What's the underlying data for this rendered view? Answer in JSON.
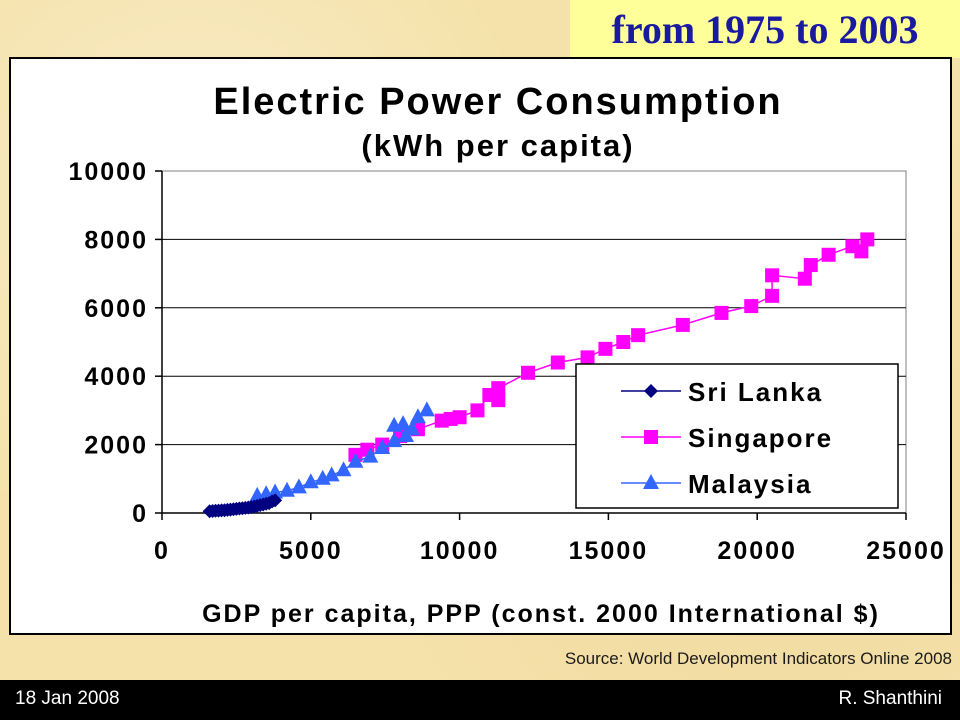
{
  "headline": "from 1975 to 2003",
  "source": "Source: World Development Indicators Online 2008",
  "footer": {
    "date": "18 Jan 2008",
    "author": "R. Shanthini"
  },
  "colors": {
    "sri_lanka": "#000080",
    "singapore": "#ff00ff",
    "malaysia": "#3366ff"
  },
  "chart_data": {
    "type": "scatter",
    "title": "Electric Power Consumption",
    "subtitle": "(kWh per capita)",
    "xlabel": "GDP per capita, PPP (const. 2000 International $)",
    "ylabel": "",
    "xlim": [
      0,
      25000
    ],
    "ylim": [
      0,
      10000
    ],
    "xticks": [
      "0",
      "5000",
      "10000",
      "15000",
      "20000",
      "25000"
    ],
    "yticks": [
      "0",
      "2000",
      "4000",
      "6000",
      "8000",
      "10000"
    ],
    "grid": "horizontal",
    "legend_position": "bottom-right",
    "series": [
      {
        "name": "Sri Lanka",
        "color": "#000080",
        "marker": "diamond",
        "points": [
          [
            1600,
            50
          ],
          [
            1700,
            60
          ],
          [
            1800,
            65
          ],
          [
            1900,
            70
          ],
          [
            2000,
            75
          ],
          [
            2100,
            80
          ],
          [
            2200,
            90
          ],
          [
            2300,
            100
          ],
          [
            2400,
            110
          ],
          [
            2500,
            120
          ],
          [
            2600,
            130
          ],
          [
            2700,
            140
          ],
          [
            2800,
            150
          ],
          [
            2900,
            160
          ],
          [
            3000,
            175
          ],
          [
            3100,
            190
          ],
          [
            3200,
            210
          ],
          [
            3300,
            230
          ],
          [
            3400,
            250
          ],
          [
            3500,
            270
          ],
          [
            3600,
            290
          ],
          [
            3700,
            340
          ],
          [
            3800,
            370
          ]
        ]
      },
      {
        "name": "Singapore",
        "color": "#ff00ff",
        "marker": "square",
        "points": [
          [
            6500,
            1700
          ],
          [
            6900,
            1850
          ],
          [
            7400,
            2000
          ],
          [
            8000,
            2250
          ],
          [
            8600,
            2450
          ],
          [
            9400,
            2700
          ],
          [
            9700,
            2750
          ],
          [
            10000,
            2800
          ],
          [
            10600,
            3000
          ],
          [
            11000,
            3450
          ],
          [
            11300,
            3300
          ],
          [
            11300,
            3650
          ],
          [
            12300,
            4100
          ],
          [
            13300,
            4400
          ],
          [
            14300,
            4550
          ],
          [
            14900,
            4800
          ],
          [
            15500,
            5000
          ],
          [
            16000,
            5200
          ],
          [
            17500,
            5500
          ],
          [
            18800,
            5850
          ],
          [
            19800,
            6050
          ],
          [
            20500,
            6350
          ],
          [
            20500,
            6950
          ],
          [
            21600,
            6850
          ],
          [
            21800,
            7250
          ],
          [
            22400,
            7550
          ],
          [
            23200,
            7800
          ],
          [
            23500,
            7650
          ],
          [
            23700,
            8000
          ]
        ]
      },
      {
        "name": "Malaysia",
        "color": "#3366ff",
        "marker": "triangle",
        "points": [
          [
            3200,
            500
          ],
          [
            3500,
            550
          ],
          [
            3800,
            600
          ],
          [
            4200,
            650
          ],
          [
            4600,
            750
          ],
          [
            5000,
            900
          ],
          [
            5400,
            1000
          ],
          [
            5700,
            1100
          ],
          [
            6100,
            1250
          ],
          [
            6500,
            1500
          ],
          [
            7000,
            1650
          ],
          [
            7400,
            1900
          ],
          [
            7800,
            2100
          ],
          [
            8200,
            2250
          ],
          [
            7800,
            2550
          ],
          [
            8100,
            2600
          ],
          [
            8400,
            2450
          ],
          [
            8600,
            2800
          ],
          [
            8900,
            3000
          ]
        ]
      }
    ]
  }
}
